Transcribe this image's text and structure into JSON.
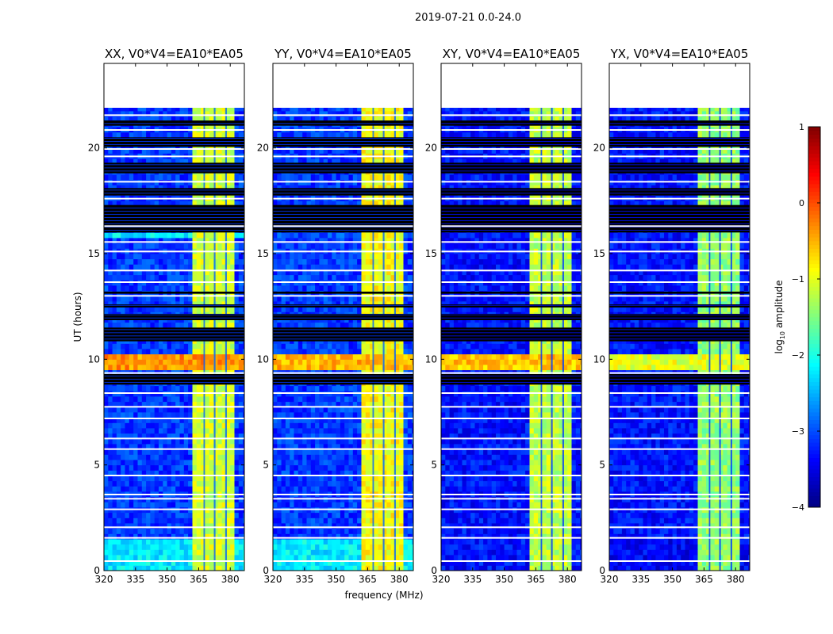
{
  "chart_data": {
    "type": "heatmap",
    "suptitle": "2019-07-21 0.0-24.0",
    "xlabel": "frequency (MHz)",
    "ylabel": "UT (hours)",
    "xlim": [
      320,
      386.7
    ],
    "ylim": [
      0,
      24
    ],
    "xticks": [
      320,
      335,
      350,
      365,
      380
    ],
    "yticks": [
      0,
      5,
      10,
      15,
      20
    ],
    "data_time_range_hours": [
      0,
      21.9
    ],
    "colorbar": {
      "label_main": "log",
      "label_sub": "10",
      "label_rest": " amplitude",
      "range": [
        -4,
        1
      ],
      "ticks": [
        1,
        0,
        -1,
        -2,
        -3,
        -4
      ],
      "tick_labels": [
        "1",
        "0",
        "−1",
        "−2",
        "−3",
        "−4"
      ],
      "colormap": "jet"
    },
    "rfi_channels_mhz": [
      [
        363,
        367.3
      ],
      [
        368,
        372.2
      ],
      [
        373,
        377.6
      ],
      [
        378.4,
        383
      ]
    ],
    "flagged_white_hours": [
      0.45,
      1.55,
      2.05,
      2.9,
      3.4,
      3.6,
      4.5,
      5.75,
      6.25,
      7.2,
      7.75,
      8.4,
      9.35,
      13.0,
      13.65,
      14.2,
      15.1,
      15.55,
      16.3,
      17.6,
      18.4,
      19.6,
      19.95,
      20.85,
      21.55
    ],
    "flagged_black_bands_hours": [
      [
        8.8,
        9.3
      ],
      [
        10.85,
        11.5
      ],
      [
        11.85,
        12.15
      ],
      [
        12.45,
        12.6
      ],
      [
        13.1,
        13.2
      ],
      [
        16.0,
        17.3
      ],
      [
        17.75,
        18.1
      ],
      [
        18.8,
        19.3
      ],
      [
        20.05,
        20.5
      ],
      [
        21.05,
        21.3
      ]
    ],
    "panels": [
      {
        "title": "XX, V0*V4=EA10*EA05",
        "background": -3.1,
        "rfi": -1.1,
        "low_band": [
          0,
          1.5
        ],
        "low_band_level": -2.2,
        "broadband": [
          9.5,
          10.3
        ],
        "broadband_level": -0.35,
        "extra_band": [
          15.7,
          16.0
        ],
        "extra_band_level": -2.2
      },
      {
        "title": "YY, V0*V4=EA10*EA05",
        "background": -3.1,
        "rfi": -0.9,
        "low_band": [
          0,
          1.5
        ],
        "low_band_level": -2.2,
        "broadband": [
          9.5,
          10.3
        ],
        "broadband_level": -0.5,
        "extra_band": [
          15.7,
          16.0
        ],
        "extra_band_level": -3.0
      },
      {
        "title": "XY, V0*V4=EA10*EA05",
        "background": -3.3,
        "rfi": -1.2,
        "low_band": [
          0,
          1.5
        ],
        "low_band_level": -3.3,
        "broadband": [
          9.5,
          10.3
        ],
        "broadband_level": -0.6,
        "extra_band": [
          15.7,
          16.0
        ],
        "extra_band_level": -3.3
      },
      {
        "title": "YX, V0*V4=EA10*EA05",
        "background": -3.3,
        "rfi": -1.4,
        "low_band": [
          0,
          1.5
        ],
        "low_band_level": -3.4,
        "broadband": [
          9.5,
          10.3
        ],
        "broadband_level": -1.0,
        "extra_band": [
          15.7,
          16.0
        ],
        "extra_band_level": -3.3
      }
    ]
  }
}
